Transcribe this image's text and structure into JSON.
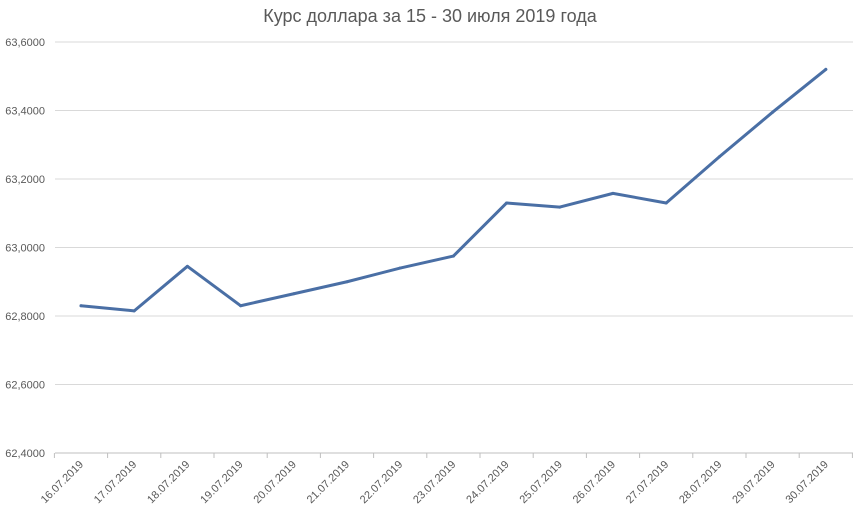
{
  "chart_data": {
    "type": "line",
    "title": "Курс доллара за 15 - 30 июля 2019 года",
    "xlabel": "",
    "ylabel": "",
    "categories": [
      "16.07.2019",
      "17.07.2019",
      "18.07.2019",
      "19.07.2019",
      "20.07.2019",
      "21.07.2019",
      "22.07.2019",
      "23.07.2019",
      "24.07.2019",
      "25.07.2019",
      "26.07.2019",
      "27.07.2019",
      "28.07.2019",
      "29.07.2019",
      "30.07.2019"
    ],
    "series": [
      {
        "values": [
          62.83,
          62.815,
          62.945,
          62.83,
          62.865,
          62.9,
          62.94,
          62.975,
          63.13,
          63.118,
          63.158,
          63.13,
          63.265,
          63.395,
          63.52
        ]
      }
    ],
    "ylim": [
      62.4,
      63.6
    ],
    "yticks": [
      "62,4000",
      "62,6000",
      "62,8000",
      "63,0000",
      "63,2000",
      "63,4000",
      "63,6000"
    ],
    "ytick_values": [
      62.4,
      62.6,
      62.8,
      63.0,
      63.2,
      63.4,
      63.6
    ],
    "grid": true,
    "legend": "none",
    "line_color": "#4a6fa5",
    "grid_color": "#d9d9d9"
  }
}
